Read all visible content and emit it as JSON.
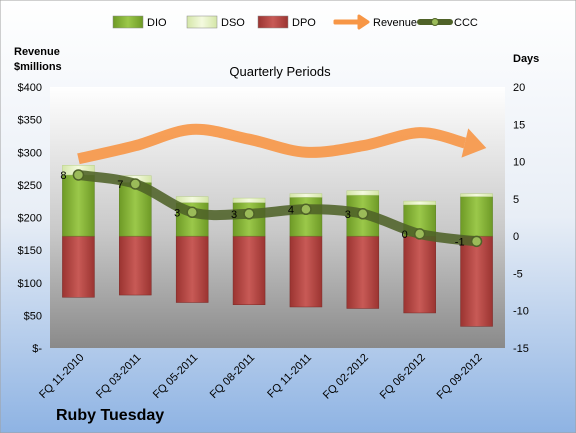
{
  "chart_data": {
    "type": "bar",
    "title": "Quarterly Periods",
    "company": "Ruby Tuesday",
    "left_axis": {
      "label_line1": "Revenue",
      "label_line2": "$millions",
      "range": [
        0,
        400
      ],
      "ticks": [
        "$-",
        "$50",
        "$100",
        "$150",
        "$200",
        "$250",
        "$300",
        "$350",
        "$400"
      ]
    },
    "right_axis": {
      "label": "Days",
      "range": [
        -15,
        20
      ],
      "ticks": [
        "-15",
        "-10",
        "-5",
        "0",
        "5",
        "10",
        "15",
        "20"
      ]
    },
    "categories": [
      "FQ 11-2010",
      "FQ 03-2011",
      "FQ 05-2011",
      "FQ 08-2011",
      "FQ 11-2011",
      "FQ 02-2012",
      "FQ 06-2012",
      "FQ 09-2012"
    ],
    "series": [
      {
        "name": "DIO",
        "unit": "days",
        "values": [
          8.2,
          7.2,
          4.5,
          4.5,
          5.2,
          5.5,
          4.2,
          5.3
        ]
      },
      {
        "name": "DSO",
        "unit": "days",
        "values": [
          1.3,
          0.9,
          0.8,
          0.6,
          0.5,
          0.6,
          0.5,
          0.4
        ]
      },
      {
        "name": "DPO",
        "unit": "days",
        "values": [
          -8.2,
          -7.9,
          -8.9,
          -9.2,
          -9.5,
          -9.7,
          -10.3,
          -12.1
        ]
      },
      {
        "name": "Revenue",
        "unit": "$millions",
        "values": [
          290,
          310,
          335,
          320,
          300,
          310,
          330,
          310
        ]
      },
      {
        "name": "CCC",
        "unit": "days",
        "values": [
          8.2,
          7.0,
          3.2,
          3.0,
          3.6,
          3.0,
          0.3,
          -0.7
        ]
      }
    ],
    "ccc_labels": [
      "8",
      "7",
      "3",
      "3",
      "4",
      "3",
      "0",
      "-1"
    ],
    "legend": [
      {
        "name": "DIO",
        "color": "#8bb73a"
      },
      {
        "name": "DSO",
        "color": "#e6f2c4"
      },
      {
        "name": "DPO",
        "color": "#c0504d"
      },
      {
        "name": "Revenue",
        "color": "#f79646"
      },
      {
        "name": "CCC",
        "color": "#4f6228"
      }
    ],
    "legend_position": "top",
    "grid": false
  }
}
